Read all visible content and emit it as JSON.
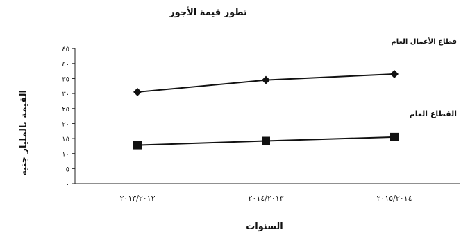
{
  "chart_data": {
    "type": "line",
    "title": "تطور قيمة الأجور",
    "xlabel": "السنوات",
    "ylabel": "القيمة بالمليار جنيه",
    "categories": [
      "٢٠١٣/٢٠١٢",
      "٢٠١٤/٢٠١٣",
      "٢٠١٥/٢٠١٤"
    ],
    "y_ticks": [
      "٠",
      "٥",
      "١٠",
      "١٥",
      "٢٠",
      "٢٥",
      "٣٠",
      "٣٥",
      "٤٠",
      "٤٥"
    ],
    "ylim": [
      0,
      45
    ],
    "grid": false,
    "series": [
      {
        "name": "قطاع الأعمال العام",
        "marker": "diamond",
        "color": "#111111",
        "values": [
          30.5,
          34.5,
          36.5
        ]
      },
      {
        "name": "القطاع العام",
        "marker": "square",
        "color": "#111111",
        "values": [
          12.8,
          14.2,
          15.5
        ]
      }
    ]
  }
}
